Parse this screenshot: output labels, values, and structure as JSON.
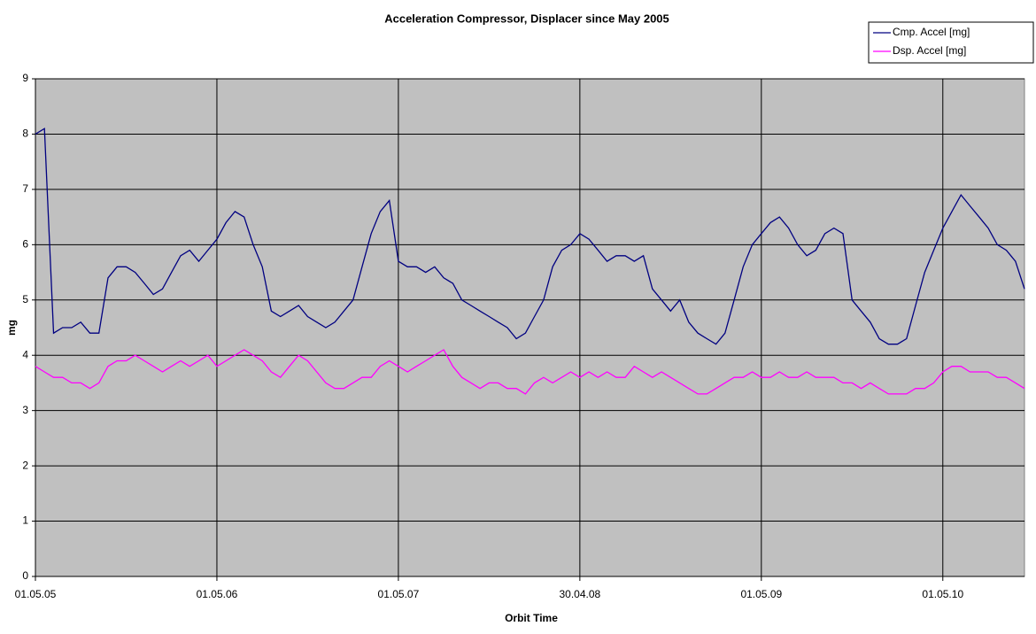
{
  "chart_data": {
    "type": "line",
    "title": "Acceleration Compressor, Displacer since May 2005",
    "x_label": "Orbit Time",
    "y_label": "mg",
    "categories": [
      "01.05.05",
      null,
      null,
      null,
      null,
      null,
      null,
      null,
      null,
      null,
      null,
      null,
      null,
      null,
      null,
      null,
      null,
      null,
      null,
      null,
      "01.05.06",
      null,
      null,
      null,
      null,
      null,
      null,
      null,
      null,
      null,
      null,
      null,
      null,
      null,
      null,
      null,
      null,
      null,
      null,
      null,
      "01.05.07",
      null,
      null,
      null,
      null,
      null,
      null,
      null,
      null,
      null,
      null,
      null,
      null,
      null,
      null,
      null,
      null,
      null,
      null,
      null,
      "30.04.08",
      null,
      null,
      null,
      null,
      null,
      null,
      null,
      null,
      null,
      null,
      null,
      null,
      null,
      null,
      null,
      null,
      null,
      null,
      null,
      "01.05.09",
      null,
      null,
      null,
      null,
      null,
      null,
      null,
      null,
      null,
      null,
      null,
      null,
      null,
      null,
      null,
      null,
      null,
      null,
      null,
      "01.05.10",
      null,
      null,
      null,
      null,
      null,
      null,
      null,
      null,
      null
    ],
    "series": [
      {
        "name": "Cmp. Accel [mg]",
        "color": "#000080",
        "values": [
          8.0,
          8.1,
          4.4,
          4.5,
          4.5,
          4.6,
          4.4,
          4.4,
          5.4,
          5.6,
          5.6,
          5.5,
          5.3,
          5.1,
          5.2,
          5.5,
          5.8,
          5.9,
          5.7,
          5.9,
          6.1,
          6.4,
          6.6,
          6.5,
          6.0,
          5.6,
          4.8,
          4.7,
          4.8,
          4.9,
          4.7,
          4.6,
          4.5,
          4.6,
          4.8,
          5.0,
          5.6,
          6.2,
          6.6,
          6.8,
          5.7,
          5.6,
          5.6,
          5.5,
          5.6,
          5.4,
          5.3,
          5.0,
          4.9,
          4.8,
          4.7,
          4.6,
          4.5,
          4.3,
          4.4,
          4.7,
          5.0,
          5.6,
          5.9,
          6.0,
          6.2,
          6.1,
          5.9,
          5.7,
          5.8,
          5.8,
          5.7,
          5.8,
          5.2,
          5.0,
          4.8,
          5.0,
          4.6,
          4.4,
          4.3,
          4.2,
          4.4,
          5.0,
          5.6,
          6.0,
          6.2,
          6.4,
          6.5,
          6.3,
          6.0,
          5.8,
          5.9,
          6.2,
          6.3,
          6.2,
          5.0,
          4.8,
          4.6,
          4.3,
          4.2,
          4.2,
          4.3,
          4.9,
          5.5,
          5.9,
          6.3,
          6.6,
          6.9,
          6.7,
          6.5,
          6.3,
          6.0,
          5.9,
          5.7,
          5.2
        ]
      },
      {
        "name": "Dsp. Accel [mg]",
        "color": "#ff00ff",
        "values": [
          3.8,
          3.7,
          3.6,
          3.6,
          3.5,
          3.5,
          3.4,
          3.5,
          3.8,
          3.9,
          3.9,
          4.0,
          3.9,
          3.8,
          3.7,
          3.8,
          3.9,
          3.8,
          3.9,
          4.0,
          3.8,
          3.9,
          4.0,
          4.1,
          4.0,
          3.9,
          3.7,
          3.6,
          3.8,
          4.0,
          3.9,
          3.7,
          3.5,
          3.4,
          3.4,
          3.5,
          3.6,
          3.6,
          3.8,
          3.9,
          3.8,
          3.7,
          3.8,
          3.9,
          4.0,
          4.1,
          3.8,
          3.6,
          3.5,
          3.4,
          3.5,
          3.5,
          3.4,
          3.4,
          3.3,
          3.5,
          3.6,
          3.5,
          3.6,
          3.7,
          3.6,
          3.7,
          3.6,
          3.7,
          3.6,
          3.6,
          3.8,
          3.7,
          3.6,
          3.7,
          3.6,
          3.5,
          3.4,
          3.3,
          3.3,
          3.4,
          3.5,
          3.6,
          3.6,
          3.7,
          3.6,
          3.6,
          3.7,
          3.6,
          3.6,
          3.7,
          3.6,
          3.6,
          3.6,
          3.5,
          3.5,
          3.4,
          3.5,
          3.4,
          3.3,
          3.3,
          3.3,
          3.4,
          3.4,
          3.5,
          3.7,
          3.8,
          3.8,
          3.7,
          3.7,
          3.7,
          3.6,
          3.6,
          3.5,
          3.4
        ]
      }
    ],
    "ylim": [
      0,
      9
    ],
    "yticks": [
      0,
      1,
      2,
      3,
      4,
      5,
      6,
      7,
      8,
      9
    ],
    "grid": true,
    "plot_background": "#c0c0c0",
    "legend": "top-right"
  }
}
